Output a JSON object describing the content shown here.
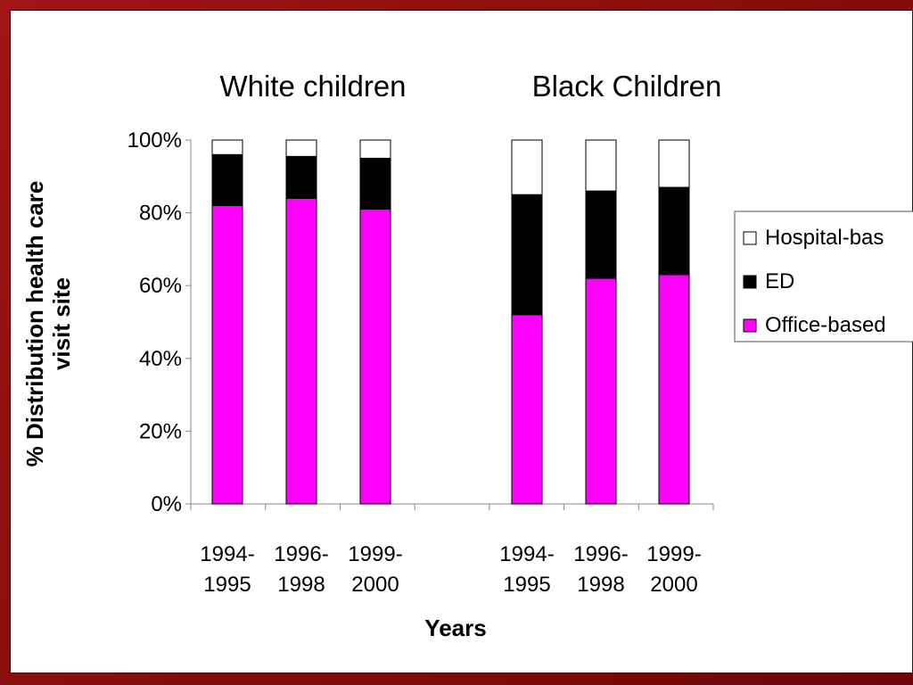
{
  "colors": {
    "frame": "#8b0a0a",
    "Hospital-based": "#ffffff",
    "ED": "#000000",
    "Office-based": "#ff00ff"
  },
  "chart_data": {
    "type": "bar",
    "stacked": true,
    "percent_stacked": true,
    "group_titles": [
      "White children",
      "Black Children"
    ],
    "categories": [
      [
        "1994-",
        "1995"
      ],
      [
        "1996-",
        "1998"
      ],
      [
        "1999-",
        "2000"
      ],
      [
        "1994-",
        "1995"
      ],
      [
        "1996-",
        "1998"
      ],
      [
        "1999-",
        "2000"
      ]
    ],
    "group_of_category": [
      0,
      0,
      0,
      1,
      1,
      1
    ],
    "series": [
      {
        "name": "Office-based",
        "values": [
          82,
          84,
          81,
          52,
          62,
          63
        ]
      },
      {
        "name": "ED",
        "values": [
          14,
          11.5,
          14,
          33,
          24,
          24
        ]
      },
      {
        "name": "Hospital-based",
        "values": [
          4,
          4.5,
          5,
          15,
          14,
          13
        ]
      }
    ],
    "legend_order": [
      "Hospital-based",
      "ED",
      "Office-based"
    ],
    "legend_labels": [
      "Hospital-bas",
      "ED",
      "Office-based"
    ],
    "legend_position": "right",
    "ylim": [
      0,
      100
    ],
    "yticks": [
      "0%",
      "20%",
      "40%",
      "60%",
      "80%",
      "100%"
    ],
    "ylabel_lines": [
      "% Distribution health care",
      "visit site"
    ],
    "xlabel": "Years",
    "grid": false
  }
}
